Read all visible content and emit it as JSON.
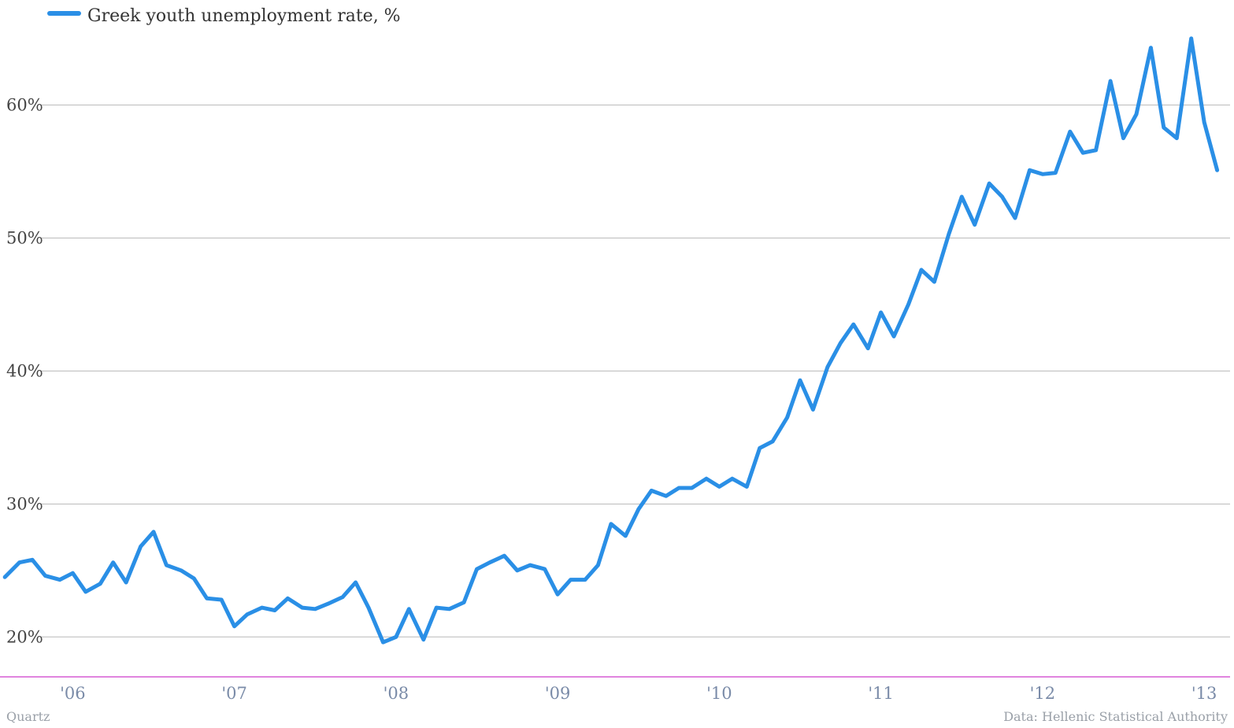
{
  "colors": {
    "series": "#2a8fe6",
    "grid": "#b8b8b8",
    "baseline": "#d55bd3"
  },
  "footer": {
    "source_left": "Quartz",
    "source_right": "Data: Hellenic Statistical Authority"
  },
  "chart_data": {
    "type": "line",
    "legend_position": "top-left",
    "grid": true,
    "ylim": [
      17,
      66
    ],
    "xlim": [
      2005.55,
      2013.16
    ],
    "y_ticks": [
      {
        "value": 20,
        "label": "20%"
      },
      {
        "value": 30,
        "label": "30%"
      },
      {
        "value": 40,
        "label": "40%"
      },
      {
        "value": 50,
        "label": "50%"
      },
      {
        "value": 60,
        "label": "60%"
      }
    ],
    "x_ticks": [
      {
        "value": 2006,
        "label": "'06"
      },
      {
        "value": 2007,
        "label": "'07"
      },
      {
        "value": 2008,
        "label": "'08"
      },
      {
        "value": 2009,
        "label": "'09"
      },
      {
        "value": 2010,
        "label": "'10"
      },
      {
        "value": 2011,
        "label": "'11"
      },
      {
        "value": 2012,
        "label": "'12"
      },
      {
        "value": 2013,
        "label": "'13"
      }
    ],
    "series": [
      {
        "name": "Greek youth unemployment rate, %",
        "points": [
          [
            2005.58,
            24.5
          ],
          [
            2005.67,
            25.6
          ],
          [
            2005.75,
            25.8
          ],
          [
            2005.83,
            24.6
          ],
          [
            2005.92,
            24.3
          ],
          [
            2006.0,
            24.8
          ],
          [
            2006.08,
            23.4
          ],
          [
            2006.17,
            24.0
          ],
          [
            2006.25,
            25.6
          ],
          [
            2006.33,
            24.1
          ],
          [
            2006.42,
            26.8
          ],
          [
            2006.5,
            27.9
          ],
          [
            2006.58,
            25.4
          ],
          [
            2006.67,
            25.0
          ],
          [
            2006.75,
            24.4
          ],
          [
            2006.83,
            22.9
          ],
          [
            2006.92,
            22.8
          ],
          [
            2007.0,
            20.8
          ],
          [
            2007.08,
            21.7
          ],
          [
            2007.17,
            22.2
          ],
          [
            2007.25,
            22.0
          ],
          [
            2007.33,
            22.9
          ],
          [
            2007.42,
            22.2
          ],
          [
            2007.5,
            22.1
          ],
          [
            2007.58,
            22.5
          ],
          [
            2007.67,
            23.0
          ],
          [
            2007.75,
            24.1
          ],
          [
            2007.83,
            22.2
          ],
          [
            2007.92,
            19.6
          ],
          [
            2008.0,
            20.0
          ],
          [
            2008.08,
            22.1
          ],
          [
            2008.17,
            19.8
          ],
          [
            2008.25,
            22.2
          ],
          [
            2008.33,
            22.1
          ],
          [
            2008.42,
            22.6
          ],
          [
            2008.5,
            25.1
          ],
          [
            2008.58,
            25.6
          ],
          [
            2008.67,
            26.1
          ],
          [
            2008.75,
            25.0
          ],
          [
            2008.83,
            25.4
          ],
          [
            2008.92,
            25.1
          ],
          [
            2009.0,
            23.2
          ],
          [
            2009.08,
            24.3
          ],
          [
            2009.17,
            24.3
          ],
          [
            2009.25,
            25.4
          ],
          [
            2009.33,
            28.5
          ],
          [
            2009.42,
            27.6
          ],
          [
            2009.5,
            29.6
          ],
          [
            2009.58,
            31.0
          ],
          [
            2009.67,
            30.6
          ],
          [
            2009.75,
            31.2
          ],
          [
            2009.83,
            31.2
          ],
          [
            2009.92,
            31.9
          ],
          [
            2010.0,
            31.3
          ],
          [
            2010.08,
            31.9
          ],
          [
            2010.17,
            31.3
          ],
          [
            2010.25,
            34.2
          ],
          [
            2010.33,
            34.7
          ],
          [
            2010.42,
            36.5
          ],
          [
            2010.5,
            39.3
          ],
          [
            2010.58,
            37.1
          ],
          [
            2010.67,
            40.3
          ],
          [
            2010.75,
            42.1
          ],
          [
            2010.83,
            43.5
          ],
          [
            2010.92,
            41.7
          ],
          [
            2011.0,
            44.4
          ],
          [
            2011.08,
            42.6
          ],
          [
            2011.17,
            45.0
          ],
          [
            2011.25,
            47.6
          ],
          [
            2011.33,
            46.7
          ],
          [
            2011.42,
            50.3
          ],
          [
            2011.5,
            53.1
          ],
          [
            2011.58,
            51.0
          ],
          [
            2011.67,
            54.1
          ],
          [
            2011.75,
            53.1
          ],
          [
            2011.83,
            51.5
          ],
          [
            2011.92,
            55.1
          ],
          [
            2012.0,
            54.8
          ],
          [
            2012.08,
            54.9
          ],
          [
            2012.17,
            58.0
          ],
          [
            2012.25,
            56.4
          ],
          [
            2012.33,
            56.6
          ],
          [
            2012.42,
            61.8
          ],
          [
            2012.5,
            57.5
          ],
          [
            2012.58,
            59.3
          ],
          [
            2012.67,
            64.3
          ],
          [
            2012.75,
            58.3
          ],
          [
            2012.83,
            57.5
          ],
          [
            2012.92,
            65.0
          ],
          [
            2013.0,
            58.7
          ],
          [
            2013.08,
            55.1
          ]
        ]
      }
    ]
  }
}
